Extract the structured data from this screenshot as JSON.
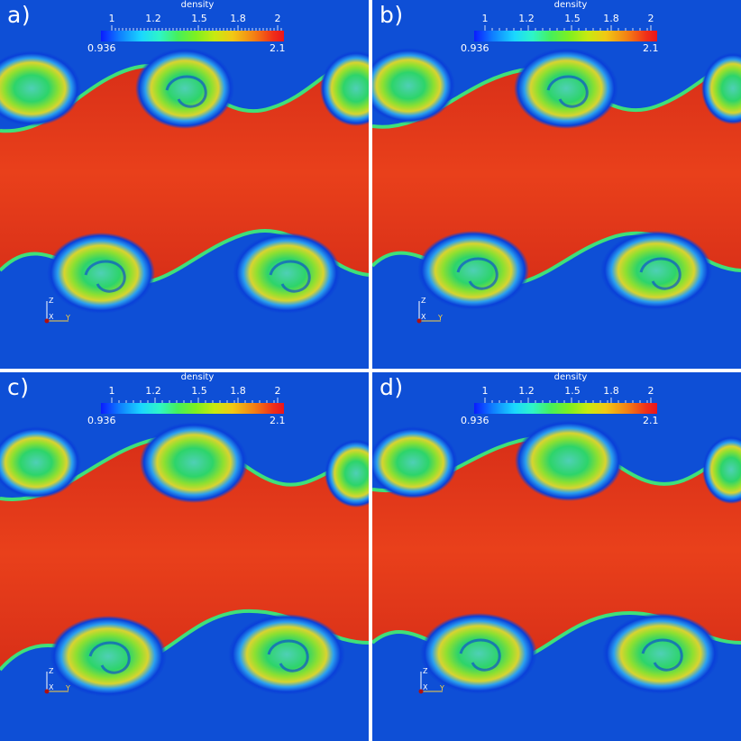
{
  "colorbar": {
    "title": "density",
    "tick_labels": [
      "1",
      "1.2",
      "1.5",
      "1.8",
      "2"
    ],
    "min_label": "0.936",
    "max_label": "2.1",
    "range": [
      0.936,
      2.1
    ]
  },
  "axes_triad": {
    "labels": [
      "Z",
      "X",
      "Y"
    ],
    "colors": [
      "#ffffff",
      "#ffffff",
      "#ffd23c"
    ]
  },
  "colors": {
    "background_field": "#e8341a",
    "low_density": "#0a3ce0",
    "mid_density": "#3dd26a",
    "high_density": "#e8141c"
  },
  "panels": [
    {
      "label": "a)"
    },
    {
      "label": "b)"
    },
    {
      "label": "c)"
    },
    {
      "label": "d)"
    }
  ]
}
